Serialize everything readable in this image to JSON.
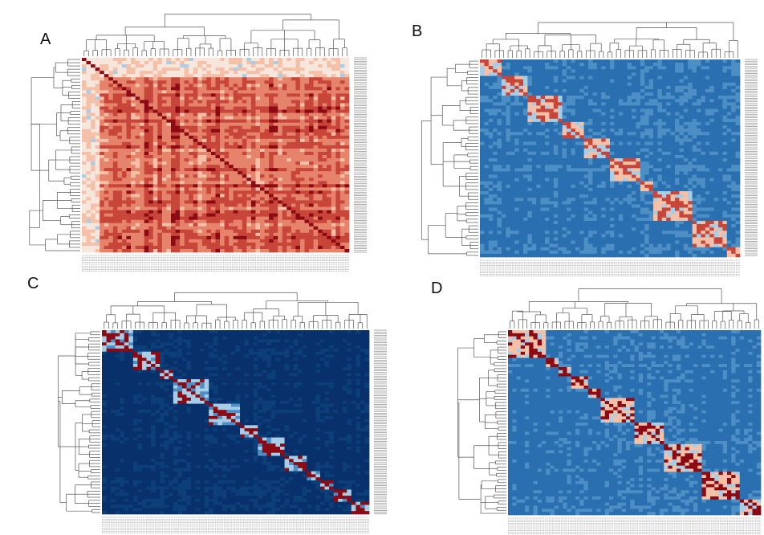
{
  "figure": {
    "panels": [
      {
        "letter": "A",
        "colormap": "reds_dominant"
      },
      {
        "letter": "B",
        "colormap": "blues_block_diagonal"
      },
      {
        "letter": "C",
        "colormap": "dark_blue_block_diagonal"
      },
      {
        "letter": "D",
        "colormap": "blues_block_diagonal_strong"
      }
    ]
  },
  "colors": {
    "deep_red": "#8b0a14",
    "red": "#c8453a",
    "salmon": "#e6836b",
    "peach": "#f4c0a8",
    "pale": "#f7e6dc",
    "light_blue": "#a8cde6",
    "mid_blue": "#4d8fc5",
    "blue": "#2a6fb0",
    "dark_blue": "#0c3f78",
    "navy": "#08306b",
    "dendro": "#555555",
    "label": "#777777"
  },
  "chart_data": [
    {
      "type": "heatmap",
      "panel": "A",
      "title": "",
      "rows": 60,
      "cols": 60,
      "grid": false,
      "dendrograms": [
        "top",
        "left"
      ],
      "row_labels": "unreadable",
      "col_labels": "unreadable"
    },
    {
      "type": "heatmap",
      "panel": "B",
      "title": "",
      "rows": 60,
      "cols": 60,
      "grid": false,
      "dendrograms": [
        "top",
        "left"
      ],
      "row_labels": "unreadable",
      "col_labels": "unreadable"
    },
    {
      "type": "heatmap",
      "panel": "C",
      "title": "",
      "rows": 60,
      "cols": 60,
      "grid": false,
      "dendrograms": [
        "top",
        "left"
      ],
      "row_labels": "unreadable",
      "col_labels": "unreadable"
    },
    {
      "type": "heatmap",
      "panel": "D",
      "title": "",
      "rows": 60,
      "cols": 60,
      "grid": false,
      "dendrograms": [
        "top",
        "left"
      ],
      "row_labels": "unreadable",
      "col_labels": "unreadable"
    }
  ]
}
